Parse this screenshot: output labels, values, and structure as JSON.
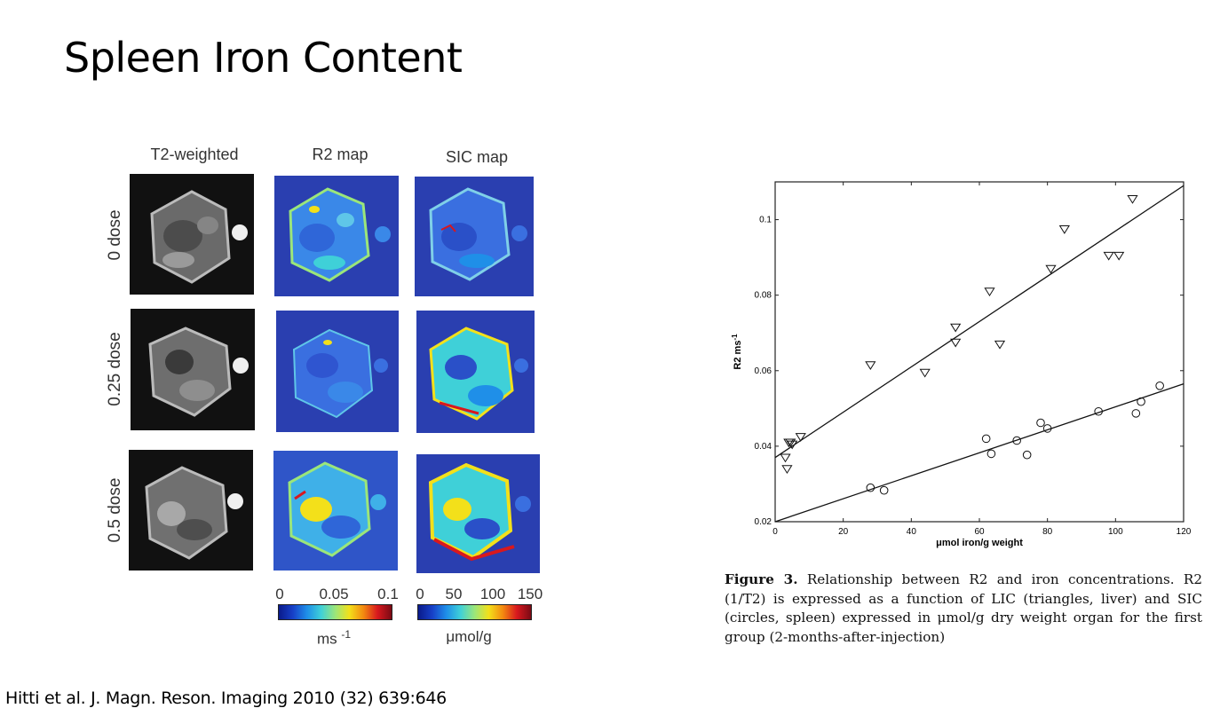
{
  "slide": {
    "title": "Spleen Iron Content",
    "citation": "Hitti et al. J. Magn. Reson. Imaging 2010 (32) 639:646"
  },
  "figure_left": {
    "column_labels": [
      "T2-weighted",
      "R2 map",
      "SIC map"
    ],
    "row_labels": [
      "0 dose",
      "0.25 dose",
      "0.5 dose"
    ],
    "colorbar_ms": {
      "ticks": [
        "0",
        "0.05",
        "0.1"
      ],
      "unit": "ms",
      "unit_exp": "-1"
    },
    "colorbar_umol": {
      "ticks": [
        "0",
        "50",
        "100",
        "150"
      ],
      "unit": "μmol/g"
    },
    "map_colors": {
      "background": "#2a3fb0",
      "tissue": "#3a6fe0",
      "high": "#f3e01a",
      "very_high": "#d8181e"
    }
  },
  "chart_data": {
    "type": "scatter",
    "xlabel": "μmol iron/g weight",
    "ylabel": "R2 ms",
    "ylabel_exp": "-1",
    "xlim": [
      0,
      120
    ],
    "ylim": [
      0.02,
      0.11
    ],
    "xticks": [
      0,
      20,
      40,
      60,
      80,
      100,
      120
    ],
    "yticks": [
      0.02,
      0.04,
      0.06,
      0.08,
      0.1
    ],
    "xtick_labels": [
      "0",
      "20",
      "40",
      "60",
      "80",
      "100",
      "120"
    ],
    "ytick_labels": [
      "0.02",
      "0.04",
      "0.06",
      "0.08",
      "0.1"
    ],
    "grid": false,
    "series": [
      {
        "marker": "triangle-down",
        "points": [
          [
            3,
            0.037
          ],
          [
            3.5,
            0.034
          ],
          [
            4,
            0.041
          ],
          [
            4.5,
            0.041
          ],
          [
            5,
            0.0405
          ],
          [
            7.5,
            0.0425
          ],
          [
            28,
            0.0615
          ],
          [
            44,
            0.0595
          ],
          [
            53,
            0.0715
          ],
          [
            53,
            0.0675
          ],
          [
            63,
            0.081
          ],
          [
            66,
            0.067
          ],
          [
            81,
            0.087
          ],
          [
            85,
            0.0975
          ],
          [
            98,
            0.0905
          ],
          [
            101,
            0.0905
          ],
          [
            105,
            0.1055
          ]
        ],
        "fit": [
          [
            0,
            0.037
          ],
          [
            120,
            0.109
          ]
        ]
      },
      {
        "marker": "circle",
        "points": [
          [
            28,
            0.029
          ],
          [
            32,
            0.0283
          ],
          [
            62,
            0.042
          ],
          [
            63.5,
            0.038
          ],
          [
            71,
            0.0415
          ],
          [
            74,
            0.0377
          ],
          [
            78,
            0.0462
          ],
          [
            80,
            0.0447
          ],
          [
            95,
            0.0492
          ],
          [
            106,
            0.0487
          ],
          [
            107.5,
            0.0518
          ],
          [
            113,
            0.056
          ]
        ],
        "fit": [
          [
            0,
            0.02
          ],
          [
            120,
            0.0565
          ]
        ]
      }
    ]
  },
  "caption": {
    "label": "Figure 3.",
    "text": "Relationship between R2 and iron concentrations. R2 (1/T2) is expressed as a function of LIC (triangles, liver) and SIC (circles, spleen) expressed in μmol/g dry weight organ for the first group (2-months-after-injection)"
  }
}
